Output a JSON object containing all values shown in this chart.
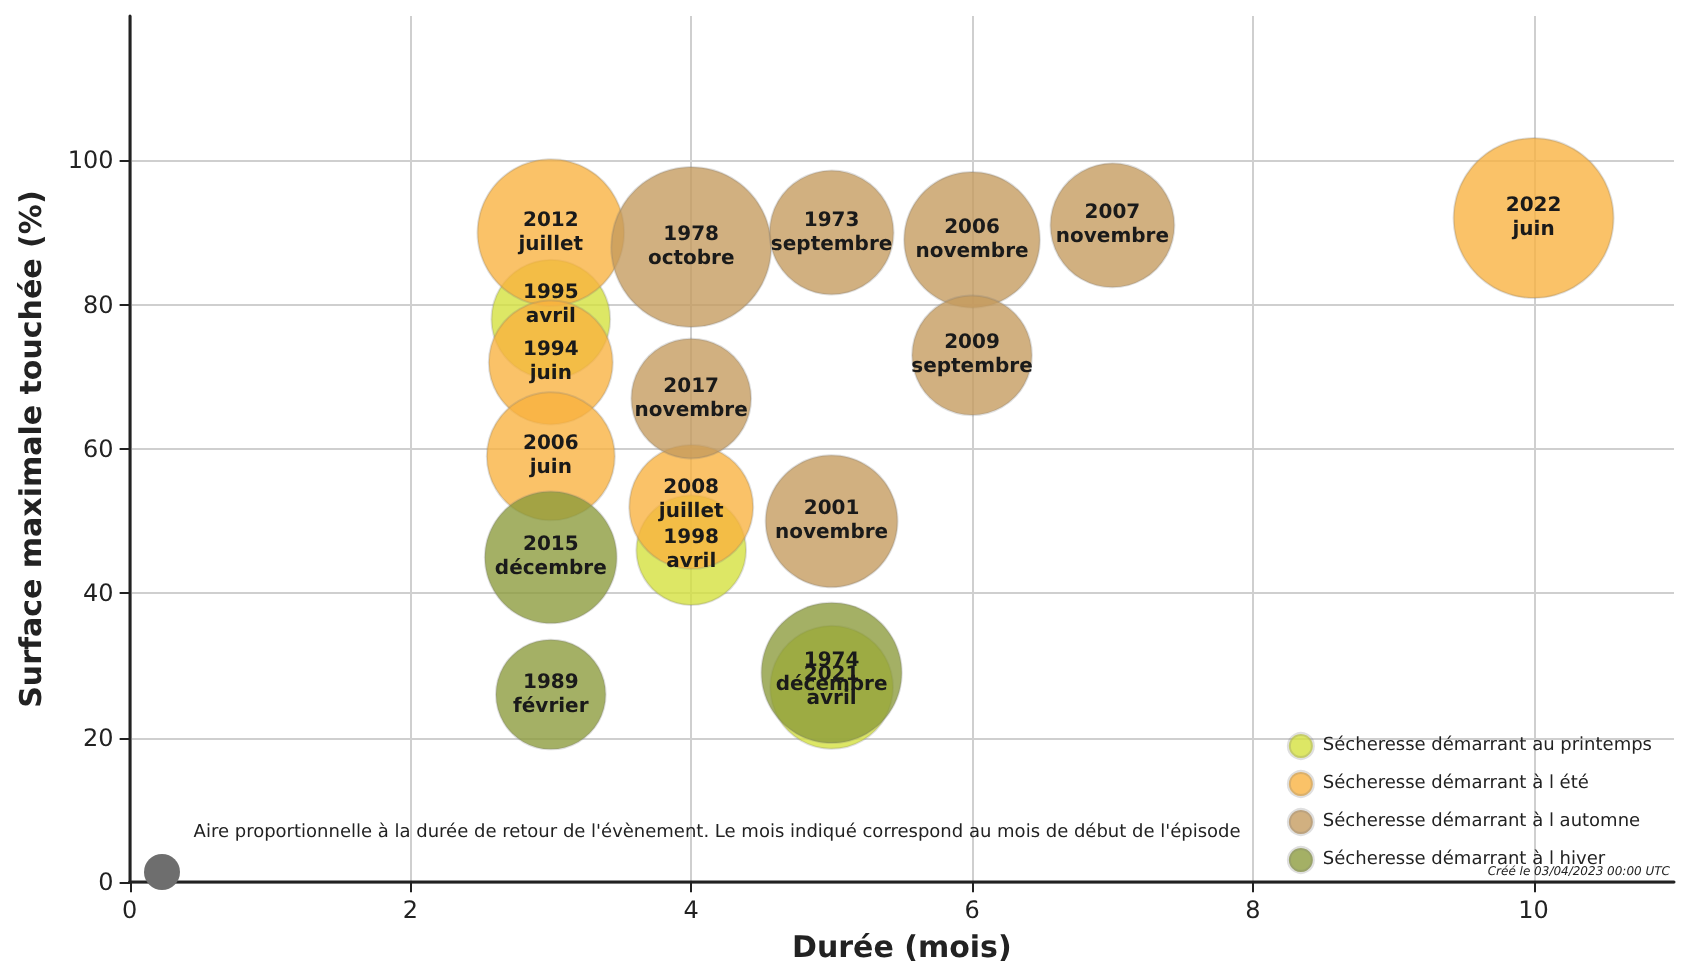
{
  "chart_data": {
    "type": "bubble",
    "xlabel": "Durée (mois)",
    "ylabel": "Surface maximale touchée (%)",
    "xlim": [
      0,
      11
    ],
    "xticks": [
      0,
      2,
      4,
      6,
      8,
      10
    ],
    "ylim": [
      0,
      120
    ],
    "yticks": [
      0,
      20,
      40,
      60,
      80,
      100
    ],
    "grid": true,
    "legend": "bottom right",
    "marker": "circle",
    "series": [
      {
        "name": "Sécheresse démarrant au printemps",
        "color": "#d4e03a",
        "x": [
          3,
          4,
          5
        ],
        "values": [
          78,
          46,
          27
        ],
        "sizes": [
          0.55,
          0.47,
          0.59
        ]
      },
      {
        "name": "Sécheresse démarrant à l été",
        "color": "#f9b13d",
        "x": [
          3,
          3,
          3,
          4,
          10
        ],
        "values": [
          90,
          72,
          59,
          52,
          92
        ],
        "sizes": [
          0.84,
          0.6,
          0.64,
          0.6,
          1
        ]
      },
      {
        "name": "Sécheresse démarrant à l automne",
        "color": "#c49a5c",
        "x": [
          4,
          5,
          6,
          7,
          6,
          4,
          5
        ],
        "values": [
          88,
          90,
          89,
          91,
          73,
          67,
          50
        ],
        "sizes": [
          1,
          0.6,
          0.72,
          0.6,
          0.56,
          0.56,
          0.68
        ]
      },
      {
        "name": "Sécheresse démarrant à l hiver",
        "color": "#8a9a3a",
        "x": [
          3,
          3,
          5
        ],
        "values": [
          45,
          26,
          29
        ],
        "sizes": [
          0.68,
          0.47,
          0.77
        ]
      }
    ],
    "annotations": [
      "Aire proportionnelle à la durée de retour de l'évènement. Le mois indiqué correspond au mois de début de l'épisode",
      "Créé le 03/04/2023 00:00 UTC",
      {
        "text": "1974\ndécembre",
        "x": 5,
        "y": 29
      },
      {
        "text": "2021\navril",
        "x": 5,
        "y": 27
      },
      {
        "text": "1995\navril",
        "x": 3,
        "y": 80
      },
      {
        "text": "1994\njuin",
        "x": 3,
        "y": 72
      },
      {
        "text": "1998\navril",
        "x": 4,
        "y": 46
      },
      {
        "text": "2012\njuillet",
        "x": 3,
        "y": 90
      },
      {
        "text": "2006\njuin",
        "x": 3,
        "y": 59
      },
      {
        "text": "2008\njuillet",
        "x": 4,
        "y": 53
      },
      {
        "text": "2022\njuin",
        "x": 10,
        "y": 92
      },
      {
        "text": "1978\noctobre",
        "x": 4,
        "y": 88
      },
      {
        "text": "1973\nseptembre",
        "x": 5,
        "y": 90
      },
      {
        "text": "2006\nnovembre",
        "x": 6,
        "y": 89
      },
      {
        "text": "2007\nnovembre",
        "x": 7,
        "y": 91
      },
      {
        "text": "2009\nseptembre",
        "x": 6,
        "y": 73
      },
      {
        "text": "2017\nnovembre",
        "x": 4,
        "y": 67
      },
      {
        "text": "2001\nnovembre",
        "x": 5,
        "y": 50
      },
      {
        "text": "2015\ndécembre",
        "x": 3,
        "y": 45
      },
      {
        "text": "1989\nfévrier",
        "x": 3,
        "y": 26
      }
    ]
  }
}
